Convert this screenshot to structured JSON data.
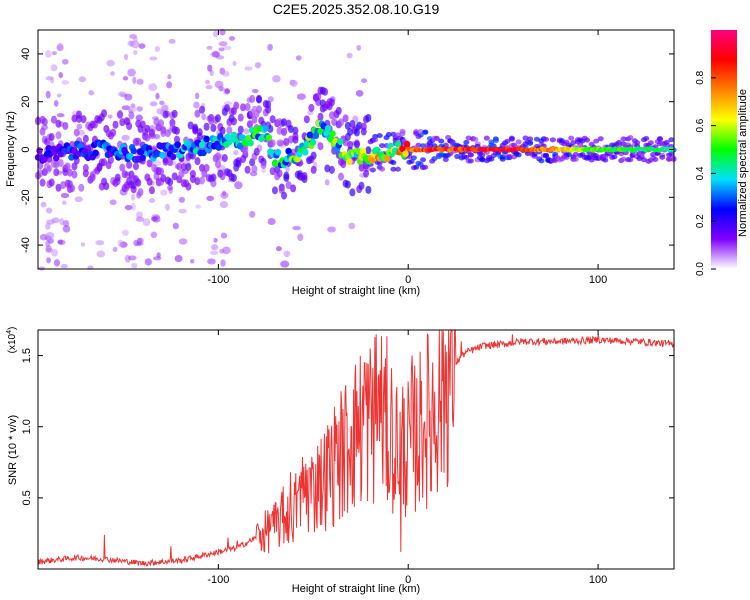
{
  "title": "C2E5.2025.352.08.10.G19",
  "chart_data": [
    {
      "type": "heatmap",
      "title": "C2E5.2025.352.08.10.G19",
      "xlabel": "Height of straight line (km)",
      "ylabel": "Frequency (Hz)",
      "xlim": [
        -195,
        140
      ],
      "ylim": [
        -50,
        50
      ],
      "xticks": [
        -100,
        0,
        100
      ],
      "xtick_labels": [
        "-100",
        "0",
        "100"
      ],
      "yticks": [
        -40,
        -20,
        0,
        20,
        40
      ],
      "ytick_labels": [
        "-40",
        "-20",
        "0",
        "20",
        "40"
      ],
      "colorbar": {
        "label": "Normalized spectral amplitude",
        "range": [
          0,
          1
        ],
        "ticks": [
          0.0,
          0.2,
          0.4,
          0.6,
          0.8
        ],
        "tick_labels": [
          "0.0",
          "0.2",
          "0.4",
          "0.6",
          "0.8"
        ],
        "colors": [
          "#ffffff",
          "#8000ff",
          "#0000ff",
          "#00e0ff",
          "#00ff00",
          "#ffff00",
          "#ff8000",
          "#ff0000",
          "#ff0080"
        ]
      },
      "ridge": {
        "x": [
          -195,
          -180,
          -160,
          -140,
          -120,
          -100,
          -85,
          -75,
          -70,
          -60,
          -50,
          -45,
          -38,
          -30,
          -20,
          -10,
          0,
          10,
          20,
          50,
          100,
          140
        ],
        "freq": [
          -3,
          -1,
          0,
          -2,
          0,
          2,
          5,
          7,
          -4,
          -3,
          5,
          10,
          2,
          -3,
          -2,
          -1,
          0,
          0,
          0,
          0,
          0,
          0
        ],
        "amplitude": [
          0.2,
          0.25,
          0.3,
          0.3,
          0.35,
          0.4,
          0.45,
          0.45,
          0.45,
          0.5,
          0.5,
          0.5,
          0.55,
          0.6,
          0.65,
          0.7,
          0.8,
          0.9,
          0.85,
          0.95,
          0.55,
          0.45
        ]
      }
    },
    {
      "type": "line",
      "xlabel": "Height of straight line (km)",
      "ylabel": "SNR (10 * v/v)",
      "y_scale_label": "(x10",
      "y_scale_exp": "4",
      "xlim": [
        -195,
        140
      ],
      "ylim": [
        0,
        1.68
      ],
      "xticks": [
        -100,
        0,
        100
      ],
      "xtick_labels": [
        "-100",
        "0",
        "100"
      ],
      "yticks": [
        0.5,
        1.0,
        1.5
      ],
      "ytick_labels": [
        "0.5",
        "1.0",
        "1.5"
      ],
      "series": [
        {
          "name": "SNR",
          "color": "#ee3333",
          "envelope_x": [
            -195,
            -175,
            -160,
            -140,
            -120,
            -100,
            -90,
            -80,
            -70,
            -60,
            -55,
            -45,
            -40,
            -30,
            -25,
            -20,
            -15,
            -10,
            -5,
            0,
            5,
            10,
            15,
            20,
            25,
            30,
            40,
            50,
            60,
            80,
            100,
            120,
            140
          ],
          "envelope_y": [
            0.05,
            0.08,
            0.07,
            0.04,
            0.06,
            0.12,
            0.15,
            0.22,
            0.3,
            0.42,
            0.55,
            0.62,
            0.72,
            0.9,
            1.0,
            1.05,
            1.1,
            1.0,
            0.88,
            0.85,
            0.95,
            1.05,
            1.2,
            1.35,
            1.45,
            1.52,
            1.57,
            1.58,
            1.6,
            1.6,
            1.61,
            1.6,
            1.58
          ],
          "spike_x": [
            -160,
            -125,
            -95,
            -90,
            -80,
            -72,
            -66,
            -62,
            -58,
            -55,
            -50,
            -47,
            -42,
            -38,
            -35,
            -30,
            -27,
            -23,
            -20,
            -17,
            -15,
            -12,
            -10,
            -7,
            -4,
            2,
            8,
            12,
            18,
            28,
            55,
            100
          ],
          "spike_y": [
            0.24,
            0.16,
            0.22,
            0.2,
            0.3,
            0.38,
            0.58,
            0.68,
            0.55,
            0.72,
            0.75,
            0.8,
            0.85,
            0.88,
            1.15,
            1.0,
            1.25,
            1.45,
            1.55,
            1.65,
            0.9,
            1.48,
            0.55,
            0.78,
            0.12,
            1.5,
            0.95,
            0.55,
            1.32,
            1.6,
            1.65,
            1.65
          ]
        }
      ]
    }
  ]
}
